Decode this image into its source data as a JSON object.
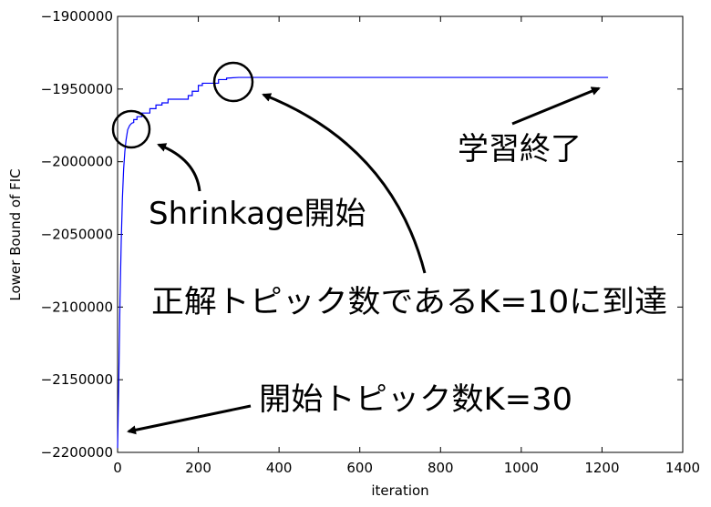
{
  "chart_data": {
    "type": "line",
    "title": "",
    "xlabel": "iteration",
    "ylabel": "Lower Bound of FIC",
    "xlim": [
      0,
      1400
    ],
    "ylim": [
      -2200000,
      -1900000
    ],
    "x_ticks": [
      0,
      200,
      400,
      600,
      800,
      1000,
      1200,
      1400
    ],
    "y_ticks": [
      -2200000,
      -2150000,
      -2100000,
      -2050000,
      -2000000,
      -1950000,
      -1900000
    ],
    "x_tick_labels": [
      "0",
      "200",
      "400",
      "600",
      "800",
      "1000",
      "1200",
      "1400"
    ],
    "y_tick_labels": [
      "−2200000",
      "−2150000",
      "−2100000",
      "−2050000",
      "−2000000",
      "−1950000",
      "−1900000"
    ],
    "grid": false,
    "line_color": "#0000ff",
    "series": [
      {
        "x": [
          0,
          3,
          6,
          9,
          12,
          15,
          18,
          21,
          25,
          30,
          35,
          40,
          40,
          48,
          48,
          60,
          60,
          80,
          80,
          95,
          95,
          110,
          110,
          125,
          125,
          175,
          175,
          185,
          185,
          200,
          200,
          210,
          210,
          250,
          250,
          270,
          270,
          300,
          1215
        ],
        "y": [
          -2197000,
          -2150000,
          -2095000,
          -2055000,
          -2025000,
          -2005000,
          -1993000,
          -1985000,
          -1978000,
          -1975000,
          -1973500,
          -1973000,
          -1971000,
          -1971000,
          -1969000,
          -1969000,
          -1966500,
          -1966500,
          -1963500,
          -1963500,
          -1961000,
          -1961000,
          -1959500,
          -1959500,
          -1957000,
          -1957000,
          -1954500,
          -1954500,
          -1951500,
          -1951500,
          -1947500,
          -1947500,
          -1946000,
          -1946000,
          -1943500,
          -1943500,
          -1942500,
          -1942000,
          -1942000
        ]
      }
    ],
    "annotations": [
      {
        "text": "Shrinkage開始"
      },
      {
        "text": "正解トピック数であるK=10に到達"
      },
      {
        "text": "学習終了"
      },
      {
        "text": "開始トピック数K=30"
      }
    ]
  }
}
